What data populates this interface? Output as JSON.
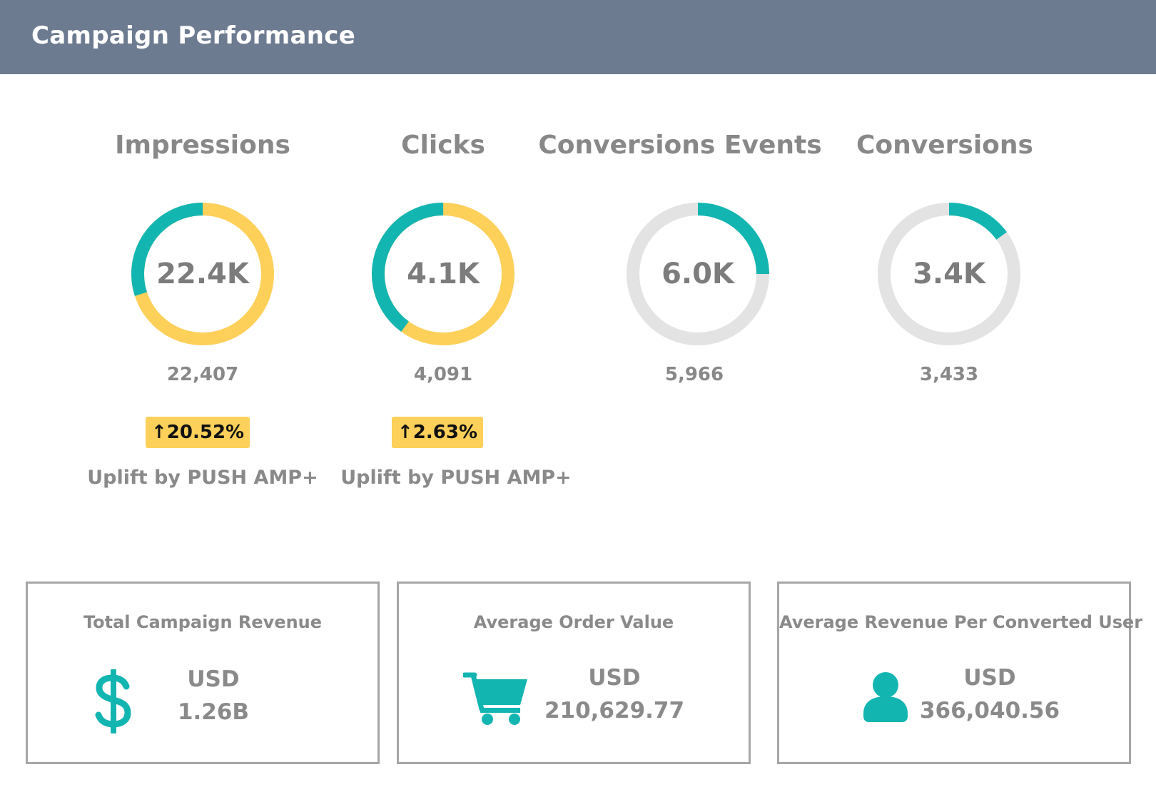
{
  "header": {
    "title": "Campaign Performance"
  },
  "metrics": [
    {
      "label": "Impressions",
      "display": "22.4K",
      "exact": "22,407",
      "teal_fraction": 0.3,
      "uplift_arrow": "↑",
      "uplift_value": "20.52%",
      "uplift_label": "Uplift by PUSH AMP+"
    },
    {
      "label": "Clicks",
      "display": "4.1K",
      "exact": "4,091",
      "teal_fraction": 0.4,
      "uplift_arrow": "↑",
      "uplift_value": "2.63%",
      "uplift_label": "Uplift by PUSH AMP+"
    },
    {
      "label": "Conversions Events",
      "display": "6.0K",
      "exact": "5,966",
      "teal_fraction": 0.25
    },
    {
      "label": "Conversions",
      "display": "3.4K",
      "exact": "3,433",
      "teal_fraction": 0.15
    }
  ],
  "cards": [
    {
      "title": "Total Campaign Revenue",
      "icon": "dollar-icon",
      "currency": "USD",
      "amount": "1.26B"
    },
    {
      "title": "Average Order Value",
      "icon": "cart-icon",
      "currency": "USD",
      "amount": "210,629.77"
    },
    {
      "title": "Average Revenue Per Converted User",
      "icon": "user-icon",
      "currency": "USD",
      "amount": "366,040.56"
    }
  ],
  "colors": {
    "teal": "#13b5b1",
    "yellow": "#fdd05a",
    "track": "#e3e3e3",
    "header": "#6d7b91"
  }
}
